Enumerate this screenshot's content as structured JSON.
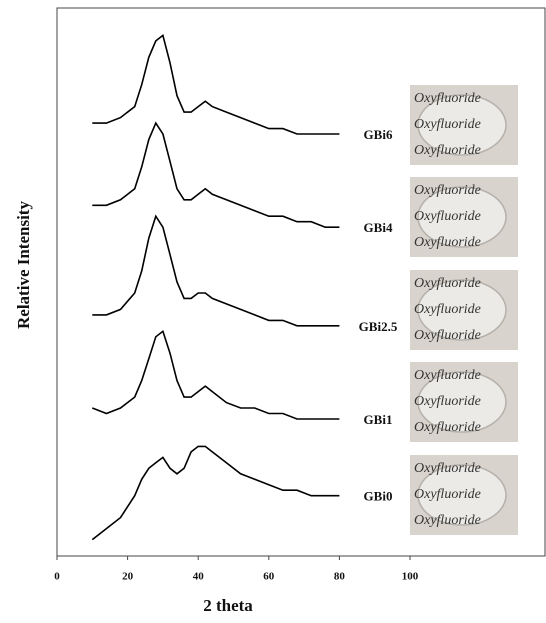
{
  "chart_data": {
    "type": "line",
    "xlabel": "2 theta",
    "ylabel": "Relative Intensity",
    "xlim": [
      0,
      100
    ],
    "xticks": [
      0,
      20,
      40,
      60,
      80,
      100
    ],
    "ylim": [
      0,
      100
    ],
    "x": [
      10,
      14,
      18,
      22,
      24,
      26,
      28,
      30,
      32,
      34,
      36,
      38,
      40,
      42,
      44,
      48,
      52,
      56,
      60,
      64,
      68,
      72,
      76,
      80
    ],
    "series": [
      {
        "name": "GBi0",
        "color": "#000000",
        "values": [
          3,
          5,
          7,
          11,
          14,
          16,
          17,
          18,
          16,
          15,
          16,
          19,
          20,
          20,
          19,
          17,
          15,
          14,
          13,
          12,
          12,
          11,
          11,
          11
        ]
      },
      {
        "name": "GBi1",
        "color": "#000000",
        "values": [
          27,
          26,
          27,
          29,
          32,
          36,
          40,
          41,
          37,
          32,
          29,
          29,
          30,
          31,
          30,
          28,
          27,
          27,
          26,
          26,
          25,
          25,
          25,
          25
        ]
      },
      {
        "name": "GBi2.5",
        "color": "#000000",
        "values": [
          44,
          44,
          45,
          48,
          52,
          58,
          62,
          60,
          55,
          50,
          47,
          47,
          48,
          48,
          47,
          46,
          45,
          44,
          43,
          43,
          42,
          42,
          42,
          42
        ]
      },
      {
        "name": "GBi4",
        "color": "#000000",
        "values": [
          64,
          64,
          65,
          67,
          71,
          76,
          79,
          77,
          72,
          67,
          65,
          65,
          66,
          67,
          66,
          65,
          64,
          63,
          62,
          62,
          61,
          61,
          60,
          60
        ]
      },
      {
        "name": "GBi6",
        "color": "#000000",
        "values": [
          79,
          79,
          80,
          82,
          86,
          91,
          94,
          95,
          90,
          84,
          81,
          81,
          82,
          83,
          82,
          81,
          80,
          79,
          78,
          78,
          77,
          77,
          77,
          77
        ]
      }
    ]
  },
  "photos": [
    {
      "lines": [
        "Oxyfluoride",
        "Oxyfluoride",
        "Oxyfluoride"
      ]
    },
    {
      "lines": [
        "Oxyfluoride",
        "Oxyfluoride",
        "Oxyfluoride"
      ]
    },
    {
      "lines": [
        "Oxyfluoride",
        "Oxyfluoride",
        "Oxyfluoride"
      ]
    },
    {
      "lines": [
        "Oxyfluoride",
        "Oxyfluoride",
        "Oxyfluoride"
      ]
    },
    {
      "lines": [
        "Oxyfluoride",
        "Oxyfluoride",
        "Oxyfluoride"
      ]
    }
  ]
}
